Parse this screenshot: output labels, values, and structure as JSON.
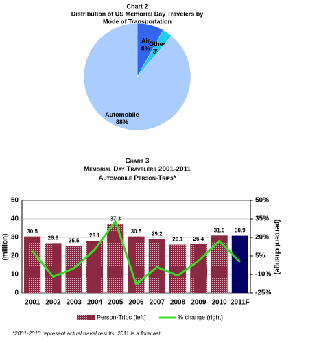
{
  "chart_data": [
    {
      "type": "pie",
      "title": "Chart 2",
      "subtitle": [
        "Distribution of US Memorial Day Travelers by",
        "Mode of Transportation"
      ],
      "categories": [
        "Automobile",
        "Air",
        "Other"
      ],
      "values": [
        88,
        8,
        3
      ],
      "value_labels": [
        "88%",
        "8%",
        "3%"
      ],
      "colors": [
        "#aaccff",
        "#3366ee",
        "#22ccee"
      ],
      "start": "Air"
    },
    {
      "type": "bar-line",
      "title": "Chart 3",
      "subtitle": [
        "Memorial Day Travelers 2001-2011",
        "Automobile Person-Trips*"
      ],
      "categories": [
        "2001",
        "2002",
        "2003",
        "2004",
        "2005",
        "2006",
        "2007",
        "2008",
        "2009",
        "2010",
        "2011F"
      ],
      "series": [
        {
          "name": "Person-Trips (left)",
          "type": "bar",
          "color": "#8b2942",
          "colors": [
            "#8b2942",
            "#8b2942",
            "#8b2942",
            "#8b2942",
            "#8b2942",
            "#8b2942",
            "#8b2942",
            "#8b2942",
            "#8b2942",
            "#8b2942",
            "#000066"
          ],
          "values": [
            30.5,
            26.9,
            25.5,
            28.1,
            37.3,
            30.5,
            29.2,
            26.1,
            26.4,
            31.0,
            30.9
          ],
          "value_labels": [
            "30.5",
            "26.9",
            "25.5",
            "28.1",
            "37.3",
            "30.5",
            "29.2",
            "26.1",
            "26.4",
            "31.0",
            "30.9"
          ]
        },
        {
          "name": "% change (right)",
          "type": "line",
          "axis": "y2",
          "color": "#33dd22",
          "values": [
            9,
            -12,
            -5,
            10,
            33,
            -18,
            -4,
            -11,
            1,
            17,
            0
          ]
        }
      ],
      "ylabel": "(million)",
      "y2label": "(percent change)",
      "ylim": [
        0,
        50
      ],
      "yticks": [
        0,
        10,
        20,
        30,
        40,
        50
      ],
      "y2lim": [
        -25,
        50
      ],
      "y2ticks": [
        {
          "value": -25,
          "label": "-25%"
        },
        {
          "value": -10,
          "label": "-10%"
        },
        {
          "value": 5,
          "label": "5%"
        },
        {
          "value": 20,
          "label": "20%"
        },
        {
          "value": 35,
          "label": "35%"
        },
        {
          "value": 50,
          "label": "50%"
        }
      ],
      "legend": "bottom",
      "note": "*2001-2010 represent actual travel results.  2011 is a forecast."
    }
  ]
}
